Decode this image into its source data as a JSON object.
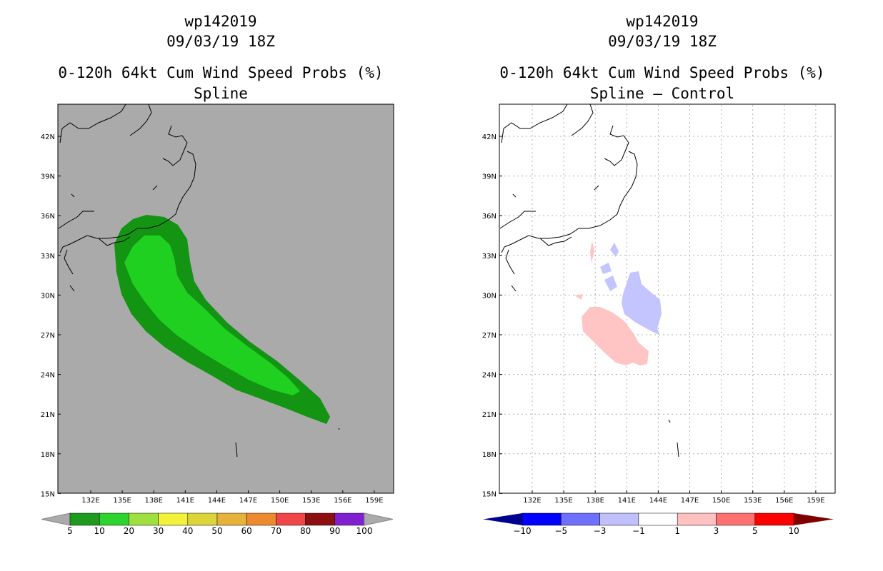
{
  "left": {
    "storm_id": "wp142019",
    "datetime": "09/03/19 18Z",
    "product": "0-120h 64kt Cum Wind Speed Probs (%)",
    "subtitle": "Spline",
    "background_color": "#aaaaaa",
    "colorbar": {
      "labels": [
        "5",
        "10",
        "20",
        "30",
        "40",
        "50",
        "60",
        "70",
        "80",
        "90",
        "100"
      ],
      "colors": [
        "#1e9a1e",
        "#2ed42e",
        "#9fe03f",
        "#f2f23a",
        "#dcd53a",
        "#e6b23a",
        "#ee8a2e",
        "#f0464a",
        "#8c1010",
        "#8020d0"
      ]
    }
  },
  "right": {
    "storm_id": "wp142019",
    "datetime": "09/03/19 18Z",
    "product": "0-120h 64kt Cum Wind Speed Probs (%)",
    "subtitle": "Spline — Control",
    "background_color": "#ffffff",
    "colorbar": {
      "labels": [
        "−10",
        "−5",
        "−3",
        "−1",
        "1",
        "3",
        "5",
        "10"
      ],
      "colors": [
        "#0000ff",
        "#7070ff",
        "#c0c0ff",
        "#ffffff",
        "#ffc0c0",
        "#ff7070",
        "#ff0000"
      ],
      "end_colors": [
        "#000090",
        "#800000"
      ]
    }
  },
  "axes": {
    "lat_labels": [
      "42N",
      "39N",
      "36N",
      "33N",
      "30N",
      "27N",
      "24N",
      "21N",
      "18N",
      "15N"
    ],
    "lon_labels": [
      "132E",
      "135E",
      "138E",
      "141E",
      "144E",
      "147E",
      "150E",
      "153E",
      "156E",
      "159E"
    ]
  },
  "colors": {
    "green_dark": "#139413",
    "green_light": "#20d020",
    "blue_light": "#c4c4ff",
    "pink_light": "#ffc4c4"
  }
}
